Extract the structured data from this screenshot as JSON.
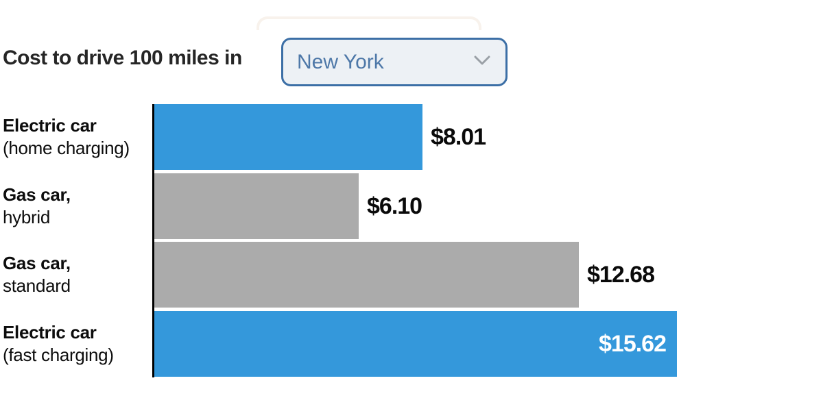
{
  "title": {
    "text": "Cost to drive 100 miles in"
  },
  "location_select": {
    "value": "New York",
    "chevron_icon": "chevron-down"
  },
  "chart_data": {
    "type": "bar",
    "orientation": "horizontal",
    "title": "Cost to drive 100 miles in New York",
    "categories": [
      "Electric car (home charging)",
      "Gas car, hybrid",
      "Gas car, standard",
      "Electric car (fast charging)"
    ],
    "category_label_lines": [
      [
        "Electric car",
        "(home charging)"
      ],
      [
        "Gas car,",
        "hybrid"
      ],
      [
        "Gas car,",
        "standard"
      ],
      [
        "Electric car",
        "(fast charging)"
      ]
    ],
    "values": [
      8.01,
      6.1,
      12.68,
      15.62
    ],
    "value_labels": [
      "$8.01",
      "$6.10",
      "$12.68",
      "$15.62"
    ],
    "bar_colors": [
      "#3498db",
      "#ababab",
      "#ababab",
      "#3498db"
    ],
    "value_label_inside": [
      false,
      false,
      false,
      true
    ],
    "xlim": [
      0,
      15.62
    ],
    "grid": false,
    "x_axis_ticks": "none",
    "y_axis_line": true
  },
  "colors": {
    "bar_blue": "#3498db",
    "bar_gray": "#ababab",
    "title_text": "#262626",
    "value_text": "#0a0a0a",
    "select_border": "#3c6fa6",
    "select_text": "#4e78a8",
    "select_bg": "#edf1f5",
    "chevron": "#9aa0a6"
  }
}
